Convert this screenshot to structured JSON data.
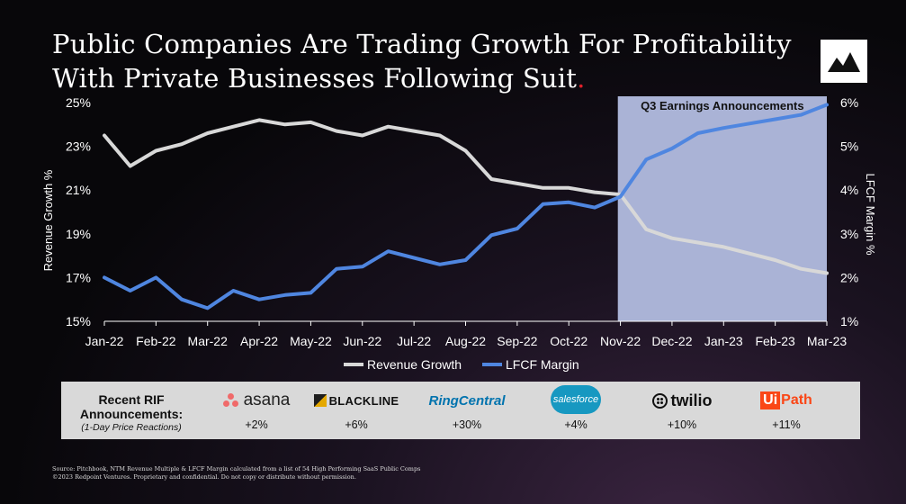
{
  "title_line1": "Public Companies Are Trading Growth For Profitability",
  "title_line2": "With Private Businesses Following Suit",
  "title_dot": ".",
  "logo_icon": "mountain-logo-icon",
  "colors": {
    "revenue": "#d8d8d8",
    "lfcf": "#4f86e0",
    "shade": "#aab3d6",
    "accent_dot": "#e0202a"
  },
  "chart_data": {
    "type": "line",
    "categories": [
      "Jan-22",
      "Feb-22",
      "Mar-22",
      "Apr-22",
      "May-22",
      "Jun-22",
      "Jul-22",
      "Aug-22",
      "Sep-22",
      "Oct-22",
      "Nov-22",
      "Dec-22",
      "Jan-23",
      "Feb-23",
      "Mar-23"
    ],
    "y_left": {
      "label": "Revenue Growth %",
      "ticks": [
        "15%",
        "17%",
        "19%",
        "21%",
        "23%",
        "25%"
      ],
      "min": 15,
      "max": 25
    },
    "y_right": {
      "label": "LFCF Margin %",
      "ticks": [
        "1%",
        "2%",
        "3%",
        "4%",
        "5%",
        "6%"
      ],
      "min": 1,
      "max": 6
    },
    "series": [
      {
        "name": "Revenue Growth",
        "axis": "left",
        "x": [
          0,
          1,
          2,
          3,
          4,
          5,
          6,
          7,
          8,
          9,
          10,
          11,
          12,
          13,
          14,
          15,
          16,
          17,
          18,
          19,
          20,
          21,
          22,
          23,
          24,
          25,
          26,
          27,
          28
        ],
        "values": [
          23.5,
          22.1,
          22.8,
          23.1,
          23.6,
          23.9,
          24.2,
          24.0,
          24.1,
          23.7,
          23.5,
          23.9,
          23.7,
          23.5,
          22.8,
          21.5,
          21.3,
          21.1,
          21.1,
          20.9,
          20.8,
          19.2,
          18.8,
          18.6,
          18.4,
          18.1,
          17.8,
          17.4,
          17.2
        ]
      },
      {
        "name": "LFCF Margin",
        "axis": "right",
        "x": [
          0,
          1,
          2,
          3,
          4,
          5,
          6,
          7,
          8,
          9,
          10,
          11,
          12,
          13,
          14,
          15,
          16,
          17,
          18,
          19,
          20,
          21,
          22,
          23,
          24,
          25,
          26,
          27,
          28
        ],
        "values": [
          2.0,
          1.7,
          2.0,
          1.5,
          1.3,
          1.7,
          1.5,
          1.6,
          1.65,
          2.2,
          2.25,
          2.6,
          2.45,
          2.3,
          2.4,
          2.97,
          3.12,
          3.68,
          3.72,
          3.6,
          3.85,
          4.7,
          4.95,
          5.3,
          5.42,
          5.52,
          5.62,
          5.72,
          5.95
        ]
      }
    ],
    "shaded_region": {
      "label": "Q3 Earnings Announcements",
      "from_category": "Nov-22",
      "to_category": "Mar-23"
    },
    "legend_position": "bottom-center",
    "grid": false
  },
  "rif": {
    "heading": "Recent RIF Announcements:",
    "subheading": "(1-Day Price Reactions)",
    "companies": [
      {
        "name": "asana",
        "change": "+2%"
      },
      {
        "name": "BLACKLINE",
        "change": "+6%"
      },
      {
        "name": "RingCentral",
        "change": "+30%"
      },
      {
        "name": "salesforce",
        "change": "+4%"
      },
      {
        "name": "twilio",
        "change": "+10%"
      },
      {
        "name": "UiPath",
        "change": "+11%"
      }
    ]
  },
  "footer_line1": "Source: Pitchbook, NTM Revenue Multiple & LFCF Margin calculated from a list of 54 High Performing SaaS Public Comps",
  "footer_line2": "©2023 Redpoint Ventures. Proprietary and confidential. Do not copy or distribute without permission."
}
